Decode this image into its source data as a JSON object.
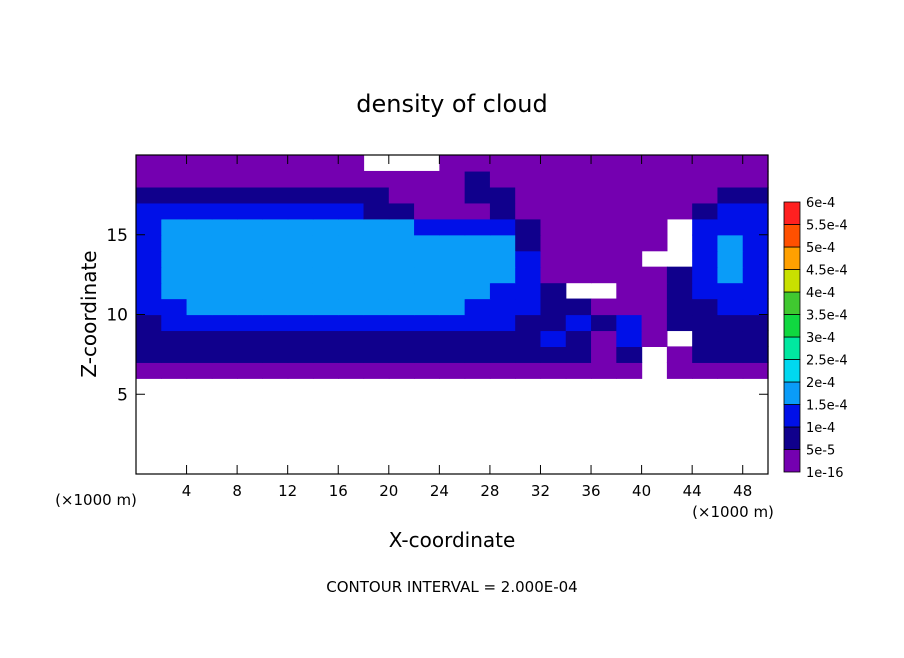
{
  "chart_data": {
    "type": "contour",
    "title": "density of cloud",
    "xlabel": "X-coordinate",
    "ylabel": "Z-coordinate",
    "xunit": "(×1000 m)",
    "yunit": "(×1000 m)",
    "footer": "CONTOUR INTERVAL = 2.000E-04",
    "xlim": [
      0,
      50
    ],
    "ylim": [
      0,
      20
    ],
    "xticks": [
      4,
      8,
      12,
      16,
      20,
      24,
      28,
      32,
      36,
      40,
      44,
      48
    ],
    "yticks": [
      5,
      10,
      15
    ],
    "x": [
      1,
      3,
      5,
      7,
      9,
      11,
      13,
      15,
      17,
      19,
      21,
      23,
      25,
      27,
      29,
      31,
      33,
      35,
      37,
      39,
      41,
      43,
      45,
      47,
      49
    ],
    "z": [
      6.5,
      7.5,
      8.5,
      9.5,
      10.5,
      11.5,
      12.5,
      13.5,
      14.5,
      15.5,
      16.5,
      17.5,
      18.5,
      19.5
    ],
    "values": [
      [
        2e-05,
        2e-05,
        2e-05,
        2e-05,
        2e-05,
        2e-05,
        2e-05,
        2e-05,
        2e-05,
        2e-05,
        2e-05,
        2e-05,
        2e-05,
        2e-05,
        2e-05,
        2e-05,
        2e-05,
        2e-05,
        2e-05,
        2e-05,
        null,
        2e-05,
        2e-05,
        2e-05,
        2e-05
      ],
      [
        7e-05,
        7e-05,
        7e-05,
        7e-05,
        7e-05,
        7e-05,
        7e-05,
        7e-05,
        7e-05,
        7e-05,
        7e-05,
        7e-05,
        7e-05,
        7e-05,
        7e-05,
        7e-05,
        7e-05,
        7e-05,
        2e-05,
        7e-05,
        null,
        2e-05,
        7e-05,
        7e-05,
        7e-05
      ],
      [
        7e-05,
        7e-05,
        7e-05,
        7e-05,
        7e-05,
        7e-05,
        7e-05,
        7e-05,
        7e-05,
        7e-05,
        7e-05,
        7e-05,
        7e-05,
        7e-05,
        7e-05,
        7e-05,
        0.00012,
        7e-05,
        2e-05,
        0.00012,
        2e-05,
        null,
        7e-05,
        7e-05,
        7e-05
      ],
      [
        7e-05,
        0.00012,
        0.00012,
        0.00012,
        0.00012,
        0.00012,
        0.00012,
        0.00012,
        0.00012,
        0.00012,
        0.00012,
        0.00012,
        0.00012,
        0.00012,
        0.00012,
        7e-05,
        7e-05,
        0.00012,
        7e-05,
        0.00012,
        2e-05,
        7e-05,
        7e-05,
        7e-05,
        7e-05
      ],
      [
        0.00012,
        0.00012,
        0.00016,
        0.00016,
        0.00016,
        0.00016,
        0.00016,
        0.00016,
        0.00016,
        0.00016,
        0.00016,
        0.00016,
        0.00016,
        0.00012,
        0.00012,
        0.00012,
        7e-05,
        7e-05,
        2e-05,
        2e-05,
        2e-05,
        7e-05,
        7e-05,
        0.00012,
        0.00012
      ],
      [
        0.00012,
        0.00016,
        0.00016,
        0.00016,
        0.00016,
        0.00016,
        0.00016,
        0.00016,
        0.00016,
        0.00016,
        0.00016,
        0.00016,
        0.00016,
        0.00016,
        0.00012,
        0.00012,
        7e-05,
        null,
        null,
        2e-05,
        2e-05,
        7e-05,
        0.00012,
        0.00012,
        0.00012
      ],
      [
        0.00012,
        0.00016,
        0.00016,
        0.00016,
        0.00016,
        0.00016,
        0.00016,
        0.00016,
        0.00016,
        0.00016,
        0.00016,
        0.00016,
        0.00016,
        0.00016,
        0.00016,
        0.00012,
        2e-05,
        2e-05,
        2e-05,
        2e-05,
        2e-05,
        7e-05,
        0.00012,
        0.00016,
        0.00012
      ],
      [
        0.00012,
        0.00016,
        0.00016,
        0.00016,
        0.00016,
        0.00016,
        0.00016,
        0.00016,
        0.00016,
        0.00016,
        0.00016,
        0.00016,
        0.00016,
        0.00016,
        0.00016,
        0.00012,
        2e-05,
        2e-05,
        2e-05,
        2e-05,
        null,
        null,
        0.00012,
        0.00016,
        0.00012
      ],
      [
        0.00012,
        0.00016,
        0.00016,
        0.00016,
        0.00016,
        0.00016,
        0.00016,
        0.00016,
        0.00016,
        0.00016,
        0.00016,
        0.00016,
        0.00016,
        0.00016,
        0.00016,
        7e-05,
        2e-05,
        2e-05,
        2e-05,
        2e-05,
        2e-05,
        null,
        0.00012,
        0.00016,
        0.00012
      ],
      [
        0.00012,
        0.00016,
        0.00016,
        0.00016,
        0.00016,
        0.00016,
        0.00016,
        0.00016,
        0.00016,
        0.00016,
        0.00016,
        0.00012,
        0.00012,
        0.00012,
        0.00012,
        7e-05,
        2e-05,
        2e-05,
        2e-05,
        2e-05,
        2e-05,
        null,
        0.00012,
        0.00012,
        0.00012
      ],
      [
        0.00012,
        0.00012,
        0.00012,
        0.00012,
        0.00012,
        0.00012,
        0.00012,
        0.00012,
        0.00012,
        7e-05,
        7e-05,
        2e-05,
        2e-05,
        2e-05,
        7e-05,
        2e-05,
        2e-05,
        2e-05,
        2e-05,
        2e-05,
        2e-05,
        2e-05,
        7e-05,
        0.00012,
        0.00012
      ],
      [
        7e-05,
        7e-05,
        7e-05,
        7e-05,
        7e-05,
        7e-05,
        7e-05,
        7e-05,
        7e-05,
        7e-05,
        2e-05,
        2e-05,
        2e-05,
        7e-05,
        7e-05,
        2e-05,
        2e-05,
        2e-05,
        2e-05,
        2e-05,
        2e-05,
        2e-05,
        2e-05,
        7e-05,
        7e-05
      ],
      [
        2e-05,
        2e-05,
        2e-05,
        2e-05,
        2e-05,
        2e-05,
        2e-05,
        2e-05,
        2e-05,
        2e-05,
        2e-05,
        2e-05,
        2e-05,
        7e-05,
        2e-05,
        2e-05,
        2e-05,
        2e-05,
        2e-05,
        2e-05,
        2e-05,
        2e-05,
        2e-05,
        2e-05,
        2e-05
      ],
      [
        2e-05,
        2e-05,
        2e-05,
        2e-05,
        2e-05,
        2e-05,
        2e-05,
        2e-05,
        2e-05,
        null,
        null,
        null,
        2e-05,
        2e-05,
        2e-05,
        2e-05,
        2e-05,
        2e-05,
        2e-05,
        2e-05,
        2e-05,
        2e-05,
        2e-05,
        2e-05,
        2e-05
      ]
    ],
    "colorbar": {
      "levels": [
        {
          "value": 1e-16,
          "label": "1e-16"
        },
        {
          "value": 5e-05,
          "label": "5e-5"
        },
        {
          "value": 0.0001,
          "label": "1e-4"
        },
        {
          "value": 0.00015,
          "label": "1.5e-4"
        },
        {
          "value": 0.0002,
          "label": "2e-4"
        },
        {
          "value": 0.00025,
          "label": "2.5e-4"
        },
        {
          "value": 0.0003,
          "label": "3e-4"
        },
        {
          "value": 0.00035,
          "label": "3.5e-4"
        },
        {
          "value": 0.0004,
          "label": "4e-4"
        },
        {
          "value": 0.00045,
          "label": "4.5e-4"
        },
        {
          "value": 0.0005,
          "label": "5e-4"
        },
        {
          "value": 0.00055,
          "label": "5.5e-4"
        },
        {
          "value": 0.0006,
          "label": "6e-4"
        }
      ],
      "colors": [
        "#7400b0",
        "#10008c",
        "#0010e8",
        "#0a9cf8",
        "#00d8f0",
        "#00e8a0",
        "#10d840",
        "#40c830",
        "#c8e000",
        "#ffa000",
        "#ff5000",
        "#ff2020"
      ]
    }
  }
}
